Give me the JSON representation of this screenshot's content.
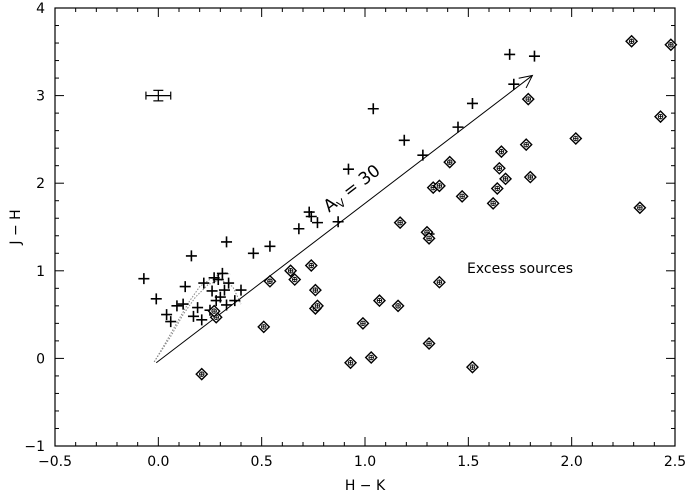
{
  "chart_data": {
    "type": "scatter",
    "title": "",
    "xlabel": "H − K",
    "ylabel": "J − H",
    "xlim": [
      -0.5,
      2.5
    ],
    "ylim": [
      -1,
      4
    ],
    "xticks": [
      -0.5,
      0.0,
      0.5,
      1.0,
      1.5,
      2.0,
      2.5
    ],
    "xtick_labels": [
      "−0.5",
      "0.0",
      "0.5",
      "1.0",
      "1.5",
      "2.0",
      "2.5"
    ],
    "yticks": [
      -1,
      0,
      1,
      2,
      3,
      4
    ],
    "ytick_labels": [
      "−1",
      "0",
      "1",
      "2",
      "3",
      "4"
    ],
    "grid": false,
    "series": [
      {
        "marker": "plus",
        "color": "#000000",
        "points": [
          [
            -0.07,
            0.91
          ],
          [
            -0.01,
            0.68
          ],
          [
            0.04,
            0.5
          ],
          [
            0.06,
            0.42
          ],
          [
            0.09,
            0.6
          ],
          [
            0.12,
            0.62
          ],
          [
            0.13,
            0.82
          ],
          [
            0.16,
            1.17
          ],
          [
            0.17,
            0.48
          ],
          [
            0.19,
            0.58
          ],
          [
            0.21,
            0.44
          ],
          [
            0.22,
            0.86
          ],
          [
            0.25,
            0.55
          ],
          [
            0.26,
            0.77
          ],
          [
            0.27,
            0.92
          ],
          [
            0.28,
            0.66
          ],
          [
            0.29,
            0.9
          ],
          [
            0.3,
            0.7
          ],
          [
            0.31,
            0.97
          ],
          [
            0.32,
            0.78
          ],
          [
            0.33,
            1.33
          ],
          [
            0.33,
            0.61
          ],
          [
            0.34,
            0.86
          ],
          [
            0.37,
            0.66
          ],
          [
            0.4,
            0.78
          ],
          [
            0.46,
            1.2
          ],
          [
            0.54,
            1.28
          ],
          [
            0.68,
            1.48
          ],
          [
            0.73,
            1.67
          ],
          [
            0.74,
            1.62
          ],
          [
            0.77,
            1.55
          ],
          [
            0.87,
            1.56
          ],
          [
            0.92,
            2.16
          ],
          [
            1.04,
            2.85
          ],
          [
            1.19,
            2.49
          ],
          [
            1.28,
            2.32
          ],
          [
            1.31,
            1.42
          ],
          [
            1.45,
            2.64
          ],
          [
            1.52,
            2.91
          ],
          [
            1.7,
            3.47
          ],
          [
            1.72,
            3.13
          ],
          [
            1.82,
            3.45
          ]
        ]
      },
      {
        "marker": "diamond",
        "color": "#000000",
        "points": [
          [
            0.21,
            -0.18
          ],
          [
            0.28,
            0.47
          ],
          [
            0.27,
            0.54
          ],
          [
            0.51,
            0.36
          ],
          [
            0.54,
            0.88
          ],
          [
            0.64,
            1.0
          ],
          [
            0.66,
            0.9
          ],
          [
            0.74,
            1.06
          ],
          [
            0.76,
            0.78
          ],
          [
            0.76,
            0.57
          ],
          [
            0.77,
            0.6
          ],
          [
            0.93,
            -0.05
          ],
          [
            0.99,
            0.4
          ],
          [
            1.03,
            0.01
          ],
          [
            1.07,
            0.66
          ],
          [
            1.16,
            0.6
          ],
          [
            1.17,
            1.55
          ],
          [
            1.3,
            1.44
          ],
          [
            1.31,
            1.37
          ],
          [
            1.31,
            0.17
          ],
          [
            1.33,
            1.95
          ],
          [
            1.36,
            1.97
          ],
          [
            1.36,
            0.87
          ],
          [
            1.41,
            2.24
          ],
          [
            1.47,
            1.85
          ],
          [
            1.52,
            -0.1
          ],
          [
            1.62,
            1.77
          ],
          [
            1.64,
            1.94
          ],
          [
            1.65,
            2.17
          ],
          [
            1.66,
            2.36
          ],
          [
            1.68,
            2.05
          ],
          [
            1.78,
            2.44
          ],
          [
            1.79,
            2.96
          ],
          [
            1.8,
            2.07
          ],
          [
            2.02,
            2.51
          ],
          [
            2.29,
            3.62
          ],
          [
            2.33,
            1.72
          ],
          [
            2.43,
            2.76
          ],
          [
            2.48,
            3.58
          ]
        ]
      }
    ],
    "error_bar": {
      "x": 0.0,
      "y": 3.0,
      "xerr": 0.06,
      "yerr": 0.06
    },
    "reddening_vector": {
      "from": [
        -0.01,
        -0.05
      ],
      "to": [
        1.81,
        3.23
      ],
      "label": "A",
      "label_sub": "V",
      "label_rest": " = 30"
    },
    "locus_curves": [
      {
        "style": "dotted",
        "color": "#888888",
        "points": [
          [
            -0.02,
            -0.04
          ],
          [
            0.04,
            0.2
          ],
          [
            0.1,
            0.45
          ],
          [
            0.15,
            0.65
          ],
          [
            0.2,
            0.82
          ],
          [
            0.26,
            0.92
          ],
          [
            0.32,
            0.98
          ],
          [
            0.35,
            0.96
          ]
        ]
      },
      {
        "style": "dotted",
        "color": "#888888",
        "points": [
          [
            -0.02,
            -0.04
          ],
          [
            0.06,
            0.25
          ],
          [
            0.12,
            0.5
          ],
          [
            0.18,
            0.7
          ],
          [
            0.24,
            0.84
          ],
          [
            0.3,
            0.9
          ],
          [
            0.36,
            0.82
          ],
          [
            0.4,
            0.62
          ]
        ]
      }
    ],
    "annotations": [
      {
        "text": "Excess sources",
        "x": 1.75,
        "y": 1.03
      }
    ]
  }
}
